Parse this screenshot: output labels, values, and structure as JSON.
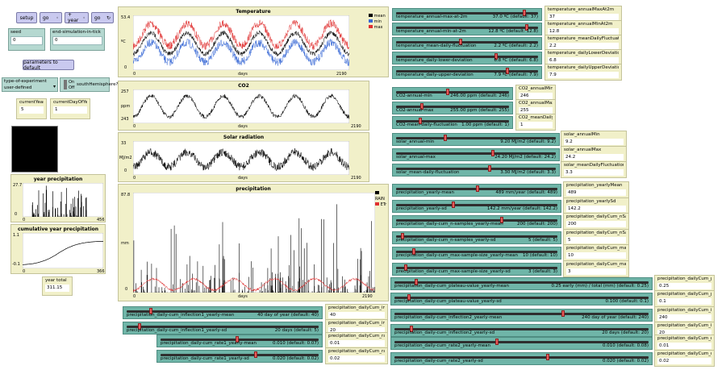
{
  "buttons": {
    "setup": "setup",
    "go_once": "go",
    "plus_year": "+ year",
    "go_forever": "go",
    "params_default": "parameters to default"
  },
  "inputs": {
    "seed": {
      "label": "seed",
      "value": "0"
    },
    "end_sim": {
      "label": "end-simulation-in-tick",
      "value": "0"
    }
  },
  "chooser": {
    "label": "type-of-experiment",
    "value": "user-defined"
  },
  "switch": {
    "label": "southHemisphere?",
    "on": "On",
    "off": "Off"
  },
  "monitors_left": {
    "current_year": {
      "label": "currentYear",
      "value": "5"
    },
    "current_day": {
      "label": "currentDayOfYear",
      "value": "1"
    },
    "year_total": {
      "label": "year total",
      "value": "311.15"
    }
  },
  "colors": {
    "black": "#000000",
    "blue": "#3a6ad6",
    "red": "#e03030",
    "plot_bg": "#ffffff",
    "panel": "#f1f0c9",
    "slider": "#6fb5a8",
    "knob": "#e65a5a"
  },
  "plots": {
    "temperature": {
      "title": "Temperature",
      "ylabel": "ºC",
      "xlabel": "days",
      "ymax": "53.4",
      "ymin": "0",
      "xmin": "0",
      "xmax": "2190",
      "legend": [
        "mean",
        "min",
        "max"
      ]
    },
    "co2": {
      "title": "CO2",
      "ylabel": "ppm",
      "xlabel": "days",
      "ymax": "257",
      "ymin": "243",
      "xmin": "0",
      "xmax": "2190"
    },
    "solar": {
      "title": "Solar radiation",
      "ylabel": "MJ/m2",
      "xlabel": "days",
      "ymax": "33",
      "ymin": "0",
      "xmin": "0",
      "xmax": "2190"
    },
    "precipitation": {
      "title": "precipitation",
      "ylabel": "mm",
      "xlabel": "days",
      "ymax": "87.8",
      "ymin": "0",
      "xmin": "0",
      "xmax": "2190",
      "legend": [
        "RAIN",
        "ETr"
      ]
    },
    "year_precip": {
      "title": "year precipitation",
      "ymax": "27.7",
      "ymin": "0",
      "xmin": "0",
      "xmax": "456"
    },
    "cum_precip": {
      "title": "cumulative year precipitation",
      "ymax": "1.1",
      "ymin": "-0.1",
      "xmin": "0",
      "xmax": "366"
    }
  },
  "sliders_top": [
    {
      "name": "temperature_annual-max-at-2m",
      "value": "37.0 ºC (default: 37)",
      "pos": 0.9,
      "mon_label": "temperature_annualMaxAt2m",
      "mon_value": "37"
    },
    {
      "name": "temperature_annual-min-at-2m",
      "value": "12.8 ºC (default: 12.8)",
      "pos": 0.92,
      "mon_label": "temperature_annualMinAt2m",
      "mon_value": "12.8"
    },
    {
      "name": "temperature_mean-daily-fluctuation",
      "value": "2.2 ºC (default: 2.2)",
      "pos": 0.45,
      "mon_label": "temperature_meanDailyFluctuation",
      "mon_value": "2.2"
    },
    {
      "name": "temperature_daily-lower-deviation",
      "value": "6.8 ºC (default: 6.8)",
      "pos": 0.7,
      "mon_label": "temperature_dailyLowerDeviation",
      "mon_value": "6.8"
    },
    {
      "name": "temperature_daily-upper-deviation",
      "value": "7.9 ºC (default: 7.9)",
      "pos": 0.78,
      "mon_label": "temperature_dailyUpperDeviation",
      "mon_value": "7.9"
    }
  ],
  "sliders_co2": [
    {
      "name": "CO2-annual-min",
      "value": "246.00 ppm (default: 246)",
      "pos": 0.45,
      "mon_label": "CO2_annualMin",
      "mon_value": "246"
    },
    {
      "name": "CO2-annual-max",
      "value": "255.00 ppm (default: 255)",
      "pos": 0.22,
      "mon_label": "CO2_annualMax",
      "mon_value": "255"
    },
    {
      "name": "CO2-mean-daily-fluctuation",
      "value": "1.00 ppm (default: 1)",
      "pos": 0.2,
      "mon_label": "CO2_meanDailyFluctuation",
      "mon_value": "1"
    }
  ],
  "sliders_solar": [
    {
      "name": "solar_annual-min",
      "value": "9.20 MJ/m2 (default: 9.2)",
      "pos": 0.3,
      "mon_label": "solar_annualMin",
      "mon_value": "9.2"
    },
    {
      "name": "solar_annual-max",
      "value": "24.20 MJ/m2 (default: 24.2)",
      "pos": 0.6,
      "mon_label": "solar_annualMax",
      "mon_value": "24.2"
    },
    {
      "name": "solar_mean-daily-fluctuation",
      "value": "3.30 MJ/m2 (default: 3.3)",
      "pos": 0.58,
      "mon_label": "solar_meanDailyFluctuation",
      "mon_value": "3.3"
    }
  ],
  "sliders_precip": [
    {
      "name": "precipitation_yearly-mean",
      "value": "489 mm/year (default: 489)",
      "pos": 0.5,
      "mon_label": "precipitation_yearlyMean",
      "mon_value": "489"
    },
    {
      "name": "precipitation_yearly-sd",
      "value": "142.2 mm/year (default: 142.2)",
      "pos": 0.35,
      "mon_label": "precipitation_yearlySd",
      "mon_value": "142.2"
    },
    {
      "name": "precipitation_daily-cum_n-samples_yearly-mean",
      "value": "200 (default: 200)",
      "pos": 0.65,
      "mon_label": "precipitation_dailyCum_nSamples_yearly...",
      "mon_value": "200"
    },
    {
      "name": "precipitation_daily-cum_n-samples_yearly-sd",
      "value": "5 (default: 5)",
      "pos": 0.03,
      "mon_label": "precipitation_dailyCum_nSamples_yearlySd",
      "mon_value": "5"
    },
    {
      "name": "precipitation_daily-cum_max-sample-size_yearly-mean",
      "value": "10 (default: 10)",
      "pos": 0.1,
      "mon_label": "precipitation_dailyCum_maxSampleSize_yearl...",
      "mon_value": "10"
    },
    {
      "name": "precipitation_daily-cum_max-sample-size_yearly-sd",
      "value": "3 (default: 3)",
      "pos": 0.05,
      "mon_label": "precipitation_dailyCum_maxSampleSize_yearl...",
      "mon_value": "3"
    }
  ],
  "sliders_plateau": [
    {
      "name": "precipitation_daily-cum_plateau-value_yearly-mean",
      "value": "0.25 early (mm) / total (mm) (default: 0.25)",
      "pos": 0.08,
      "mon_label": "precipitation_dailyCum_pl...",
      "mon_value": "0.25"
    },
    {
      "name": "precipitation_daily-cum_plateau-value_yearly-sd",
      "value": "0.100 (default: 0.1)",
      "pos": 0.05,
      "mon_label": "precipitation_dailyCum_plateau...",
      "mon_value": "0.1"
    }
  ],
  "sliders_infl1": [
    {
      "name": "precipitation_daily-cum_inflection1_yearly-mean",
      "value": "40 day of year (default: 40)",
      "pos": 0.12,
      "mon_label": "precipitation_dailyCum_inflection...",
      "mon_value": "40"
    },
    {
      "name": "precipitation_daily-cum_inflection1_yearly-sd",
      "value": "20 days (default: 5)",
      "pos": 0.06,
      "mon_label": "precipitation_dailyCum_inflectio...",
      "mon_value": "20"
    }
  ],
  "sliders_rate1": [
    {
      "name": "precipitation_daily-cum_rate1_yearly-mean",
      "value": "0.010 (default: 0.07)",
      "pos": 0.48,
      "mon_label": "precipitation_dailyCum_rate1_ye...",
      "mon_value": "0.01"
    },
    {
      "name": "precipitation_daily-cum_rate1_yearly-sd",
      "value": "0.020 (default: 0.02)",
      "pos": 0.6,
      "mon_label": "precipitation_dailyCum_rate1_y...",
      "mon_value": "0.02"
    }
  ],
  "sliders_infl2": [
    {
      "name": "precipitation_daily-cum_inflection2_yearly-mean",
      "value": "240 day of year (default: 240)",
      "pos": 0.66,
      "mon_label": "precipitation_dailyCum_inflection...",
      "mon_value": "240"
    },
    {
      "name": "precipitation_daily-cum_inflection2_yearly-sd",
      "value": "20 days (default: 20)",
      "pos": 0.06,
      "mon_label": "precipitation_dailyCum_inflectio...",
      "mon_value": "20"
    }
  ],
  "sliders_rate2": [
    {
      "name": "precipitation_daily-cum_rate2_yearly-mean",
      "value": "0.010 (default: 0.08)",
      "pos": 0.4,
      "mon_label": "precipitation_dailyCum_rate2_ye...",
      "mon_value": "0.01"
    },
    {
      "name": "precipitation_daily-cum_rate2_yearly-sd",
      "value": "0.020 (default: 0.02)",
      "pos": 0.6,
      "mon_label": "precipitation_dailyCum_rate2_y...",
      "mon_value": "0.02"
    }
  ]
}
